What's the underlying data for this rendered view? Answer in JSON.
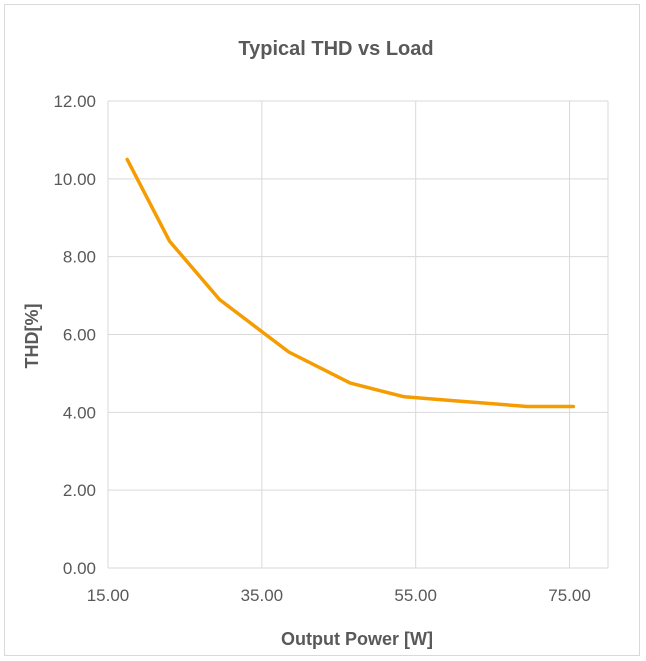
{
  "chart_data": {
    "type": "line",
    "title": "Typical THD vs Load",
    "xlabel": "Output Power [W]",
    "ylabel": "THD[%]",
    "xlim": [
      15,
      80
    ],
    "ylim": [
      0,
      12
    ],
    "x_ticks": [
      "15.00",
      "35.00",
      "55.00",
      "75.00"
    ],
    "y_ticks": [
      "0.00",
      "2.00",
      "4.00",
      "6.00",
      "8.00",
      "10.00",
      "12.00"
    ],
    "grid": true,
    "legend": "none",
    "series": [
      {
        "color": "#f59c00",
        "x": [
          17.5,
          23.0,
          29.5,
          38.5,
          46.5,
          53.5,
          60.0,
          69.5,
          75.5
        ],
        "y": [
          10.5,
          8.4,
          6.9,
          5.55,
          4.75,
          4.4,
          4.3,
          4.15,
          4.15
        ]
      }
    ]
  }
}
